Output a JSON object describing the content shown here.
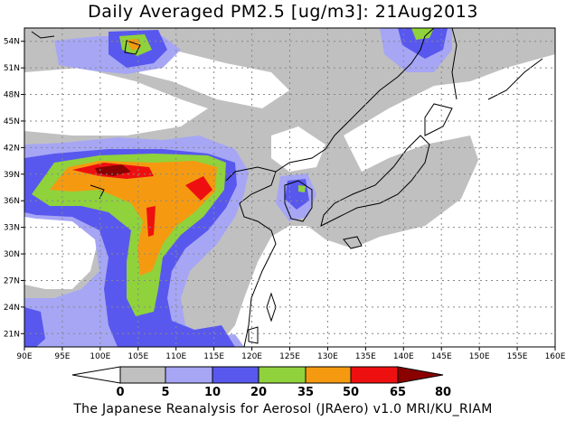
{
  "title": "Daily Averaged PM2.5 [ug/m3]: 21Aug2013",
  "footer": "The Japanese Reanalysis for Aerosol (JRAero) v1.0 MRI/KU_RIAM",
  "map": {
    "lon_range": [
      90,
      160
    ],
    "lat_range": [
      19.5,
      55.5
    ],
    "lon_ticks": [
      "90E",
      "95E",
      "100E",
      "105E",
      "110E",
      "115E",
      "120E",
      "125E",
      "130E",
      "135E",
      "140E",
      "145E",
      "150E",
      "155E",
      "160E"
    ],
    "lat_ticks": [
      "21N",
      "24N",
      "27N",
      "30N",
      "33N",
      "36N",
      "39N",
      "42N",
      "45N",
      "48N",
      "51N",
      "54N"
    ],
    "grid": true
  },
  "colorbar": {
    "labels": [
      "0",
      "5",
      "10",
      "20",
      "35",
      "50",
      "65",
      "80"
    ],
    "colors": [
      "#ffffff",
      "#c0c0c0",
      "#a6a6f5",
      "#5858ee",
      "#8fd23c",
      "#f59a10",
      "#ee1010",
      "#8b0000"
    ]
  }
}
